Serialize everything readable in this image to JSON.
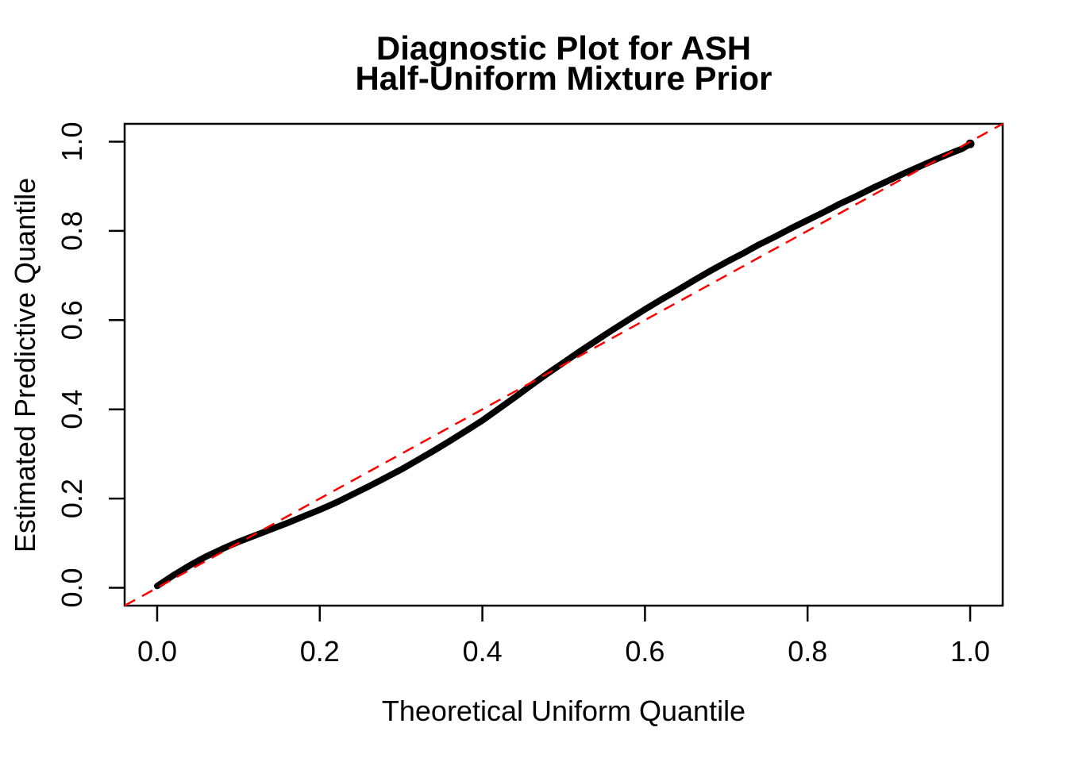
{
  "chart_data": {
    "type": "scatter",
    "title": "Diagnostic Plot for ASH\nHalf-Uniform Mixture Prior",
    "title_lines": [
      "Diagnostic Plot for ASH",
      "Half-Uniform Mixture Prior"
    ],
    "xlabel": "Theoretical Uniform Quantile",
    "ylabel": "Estimated Predictive Quantile",
    "xlim": [
      -0.04,
      1.04
    ],
    "ylim": [
      -0.04,
      1.04
    ],
    "x_ticks": [
      0.0,
      0.2,
      0.4,
      0.6,
      0.8,
      1.0
    ],
    "y_ticks": [
      0.0,
      0.2,
      0.4,
      0.6,
      0.8,
      1.0
    ],
    "grid": false,
    "legend": null,
    "series": [
      {
        "name": "estimated-predictive-quantiles",
        "color": "#000000",
        "marker": "dense-points",
        "x": [
          0.0,
          0.02,
          0.04,
          0.06,
          0.08,
          0.1,
          0.12,
          0.14,
          0.16,
          0.18,
          0.2,
          0.22,
          0.24,
          0.26,
          0.28,
          0.3,
          0.32,
          0.34,
          0.36,
          0.38,
          0.4,
          0.42,
          0.44,
          0.46,
          0.48,
          0.5,
          0.52,
          0.54,
          0.56,
          0.58,
          0.6,
          0.62,
          0.64,
          0.66,
          0.68,
          0.7,
          0.72,
          0.74,
          0.76,
          0.78,
          0.8,
          0.82,
          0.84,
          0.86,
          0.88,
          0.9,
          0.92,
          0.94,
          0.96,
          0.98,
          0.99,
          1.0
        ],
        "y": [
          0.004,
          0.028,
          0.05,
          0.07,
          0.087,
          0.103,
          0.117,
          0.131,
          0.145,
          0.16,
          0.175,
          0.191,
          0.209,
          0.227,
          0.246,
          0.265,
          0.286,
          0.307,
          0.329,
          0.352,
          0.375,
          0.401,
          0.427,
          0.454,
          0.48,
          0.505,
          0.53,
          0.554,
          0.578,
          0.601,
          0.624,
          0.646,
          0.667,
          0.689,
          0.71,
          0.73,
          0.749,
          0.769,
          0.787,
          0.806,
          0.824,
          0.842,
          0.861,
          0.878,
          0.896,
          0.913,
          0.93,
          0.946,
          0.962,
          0.977,
          0.984,
          0.995
        ]
      }
    ],
    "reference_line": {
      "name": "y = x",
      "color": "#FF0000",
      "style": "dashed",
      "x": [
        -0.04,
        1.04
      ],
      "y": [
        -0.04,
        1.04
      ]
    }
  }
}
